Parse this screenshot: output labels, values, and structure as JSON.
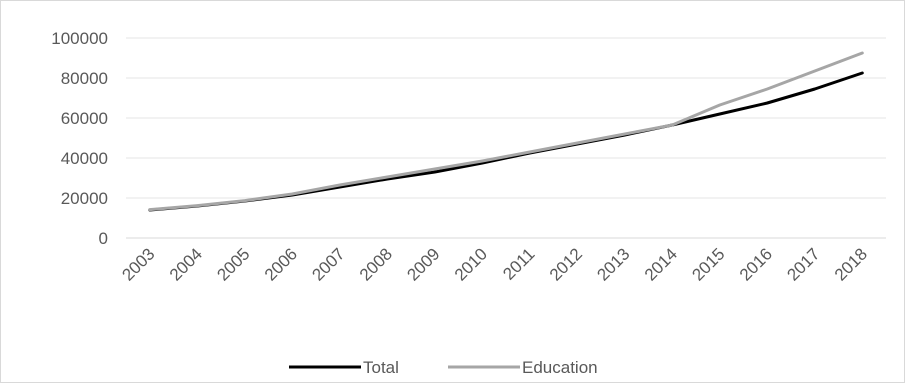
{
  "chart_data": {
    "type": "line",
    "title": "",
    "xlabel": "",
    "ylabel": "",
    "x": [
      "2003",
      "2004",
      "2005",
      "2006",
      "2007",
      "2008",
      "2009",
      "2010",
      "2011",
      "2012",
      "2013",
      "2014",
      "2015",
      "2016",
      "2017",
      "2018"
    ],
    "y_ticks": [
      "0",
      "20000",
      "40000",
      "60000",
      "80000",
      "100000"
    ],
    "ylim": [
      0,
      100000
    ],
    "grid": true,
    "legend": "bottom",
    "series": [
      {
        "name": "Total",
        "color": "#000000",
        "values": [
          14000,
          16000,
          18500,
          21500,
          25500,
          29500,
          33000,
          37500,
          42500,
          47000,
          51500,
          56500,
          62000,
          67500,
          74500,
          82500
        ]
      },
      {
        "name": "Education",
        "color": "#a6a6a6",
        "values": [
          14200,
          16200,
          18700,
          22000,
          26500,
          30500,
          34500,
          38500,
          43000,
          47500,
          52000,
          56500,
          66500,
          74500,
          83500,
          92500
        ]
      }
    ]
  }
}
